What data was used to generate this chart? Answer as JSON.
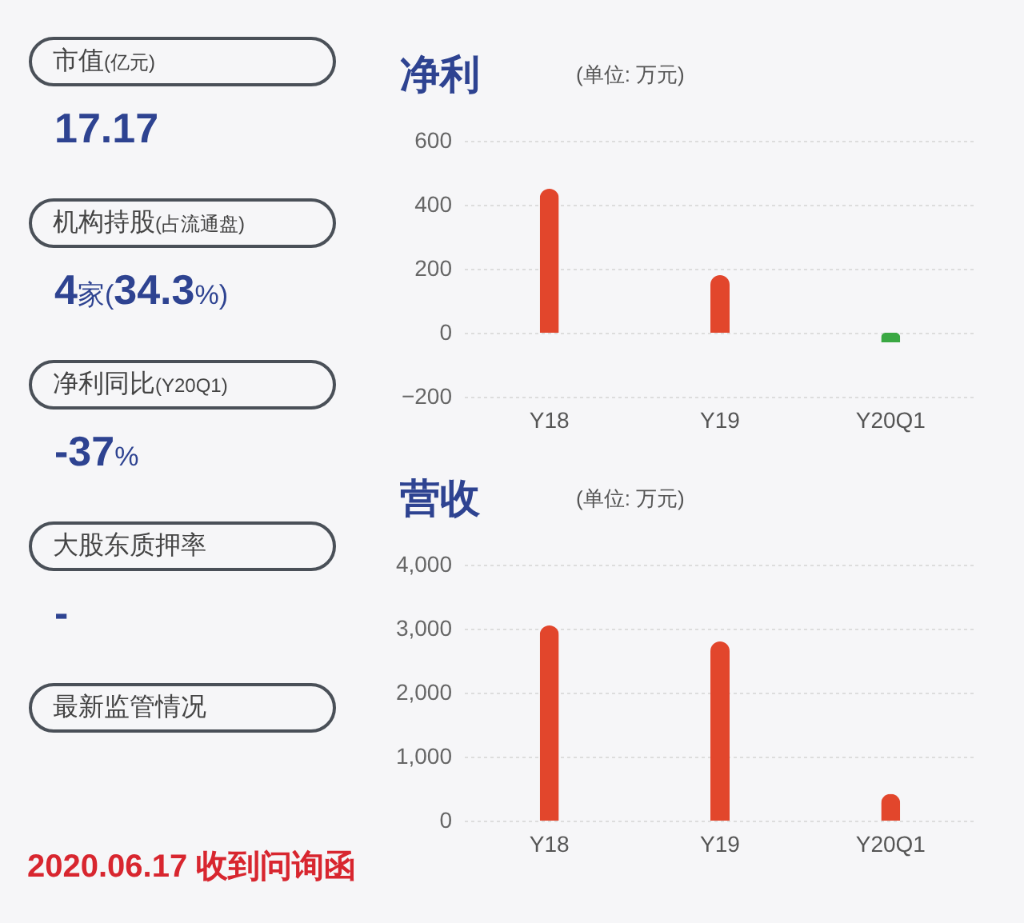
{
  "chart_data": [
    {
      "type": "other",
      "annotations": [
        "市值(亿元)",
        "17.17",
        "机构持股(占流通盘)",
        "4家(34.3%)",
        "净利同比(Y20Q1)",
        "-37%",
        "大股东质押率",
        "-",
        "最新监管情况",
        "2020.06.17 收到问询函"
      ]
    },
    {
      "type": "bar",
      "title": "净利",
      "subtitle": "(单位: 万元)",
      "categories": [
        "Y18",
        "Y19",
        "Y20Q1"
      ],
      "values": [
        450,
        180,
        -30
      ],
      "colors": [
        "#e2462c",
        "#e2462c",
        "#3aa843"
      ],
      "ylim": [
        -200,
        600
      ],
      "yticks": [
        -200,
        0,
        200,
        400,
        600
      ],
      "grid": "y"
    },
    {
      "type": "bar",
      "title": "营收",
      "subtitle": "(单位: 万元)",
      "categories": [
        "Y18",
        "Y19",
        "Y20Q1"
      ],
      "values": [
        3050,
        2800,
        420
      ],
      "colors": [
        "#e2462c",
        "#e2462c",
        "#e2462c"
      ],
      "ylim": [
        0,
        4000
      ],
      "yticks": [
        0,
        {
          "value": 1000,
          "label": "1,000"
        },
        {
          "value": 2000,
          "label": "2,000"
        },
        {
          "value": 3000,
          "label": "3,000"
        },
        {
          "value": 4000,
          "label": "4,000"
        }
      ],
      "grid": "y"
    }
  ]
}
